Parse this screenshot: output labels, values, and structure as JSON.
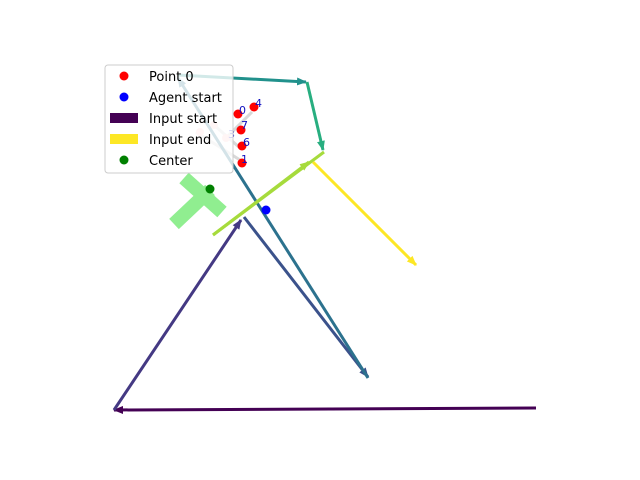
{
  "legend": {
    "entries": [
      {
        "key": "point",
        "label": "Point 0",
        "color": "#ff0000"
      },
      {
        "key": "agent",
        "label": "Agent start",
        "color": "#0000ff"
      },
      {
        "key": "input_start",
        "label": "Input start",
        "color": "#440154"
      },
      {
        "key": "input_end",
        "label": "Input end",
        "color": "#fde725"
      },
      {
        "key": "center",
        "label": "Center",
        "color": "#008000"
      }
    ]
  },
  "point_labels": [
    "0",
    "4",
    "7",
    "3",
    "6",
    "1"
  ],
  "colors": {
    "path": [
      "#440154",
      "#443983",
      "#3b528b",
      "#2c728e",
      "#21918c",
      "#28ae80",
      "#a6db3c",
      "#fde725"
    ],
    "point": "#ff0000",
    "agent": "#0000ff",
    "center": "#008000",
    "cross": "#90ee90",
    "faded_points": "#ffcccc"
  }
}
